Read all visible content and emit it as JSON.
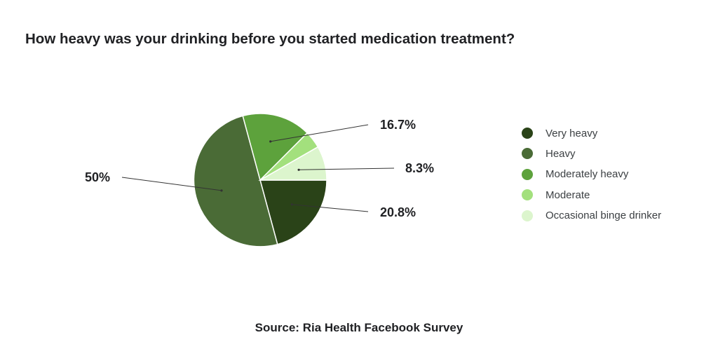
{
  "chart_data": {
    "type": "pie",
    "title": "How heavy was your drinking before you started medication treatment?",
    "source": "Source: Ria Health Facebook Survey",
    "slices": [
      {
        "label": "Very heavy",
        "value": 20.8,
        "display": "20.8%",
        "color": "#2a4318"
      },
      {
        "label": "Heavy",
        "value": 50,
        "display": "50%",
        "color": "#4a6b36"
      },
      {
        "label": "Moderately heavy",
        "value": 16.7,
        "display": "16.7%",
        "color": "#5da23c"
      },
      {
        "label": "Moderate",
        "value": 4.2,
        "display": "",
        "color": "#a3e07d"
      },
      {
        "label": "Occasional binge drinker",
        "value": 8.3,
        "display": "8.3%",
        "color": "#dcf5cd"
      }
    ],
    "legend_position": "right"
  }
}
